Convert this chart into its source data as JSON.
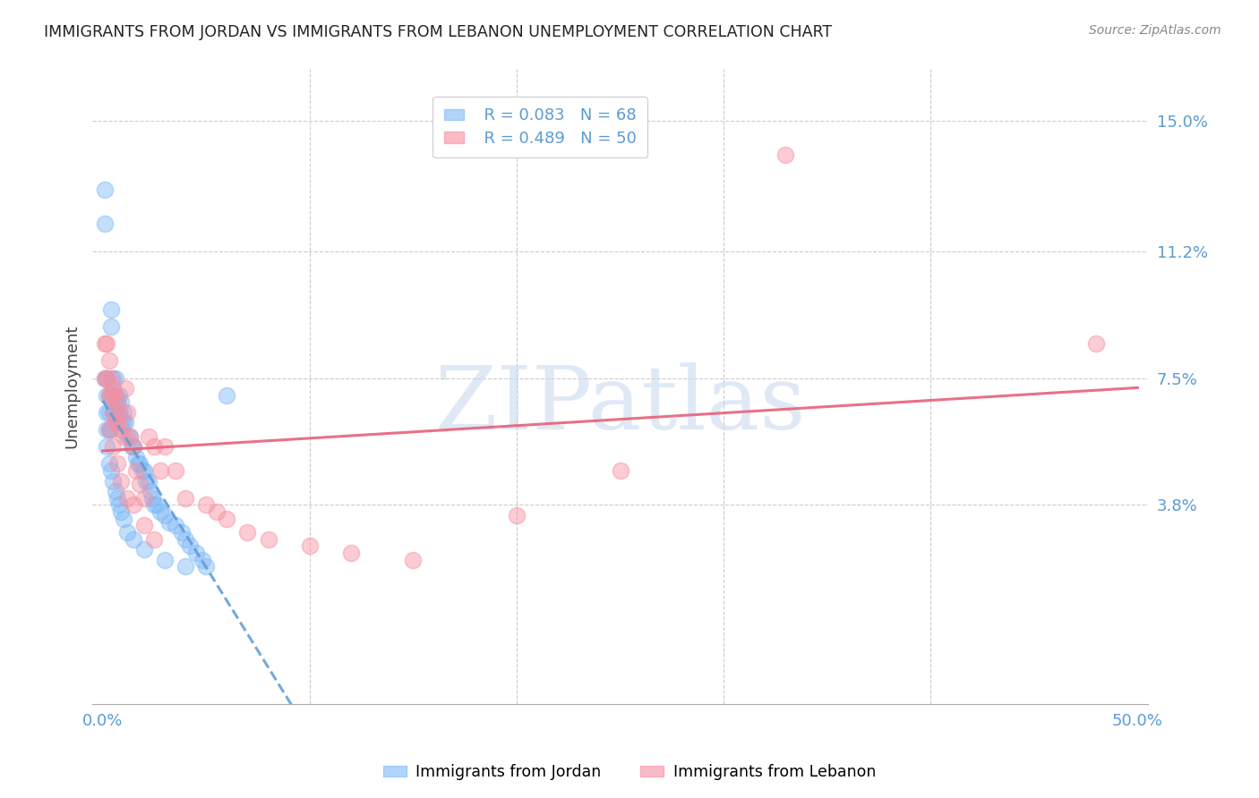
{
  "title": "IMMIGRANTS FROM JORDAN VS IMMIGRANTS FROM LEBANON UNEMPLOYMENT CORRELATION CHART",
  "source": "Source: ZipAtlas.com",
  "ylabel": "Unemployment",
  "xlim": [
    -0.005,
    0.505
  ],
  "ylim": [
    -0.02,
    0.165
  ],
  "yticks": [
    0.038,
    0.075,
    0.112,
    0.15
  ],
  "ytick_labels": [
    "3.8%",
    "7.5%",
    "11.2%",
    "15.0%"
  ],
  "xticks": [
    0.0,
    0.1,
    0.2,
    0.3,
    0.4,
    0.5
  ],
  "xtick_labels": [
    "0.0%",
    "",
    "",
    "",
    "",
    "50.0%"
  ],
  "jordan_color": "#7EB8F7",
  "lebanon_color": "#F78FA0",
  "jordan_R": 0.083,
  "jordan_N": 68,
  "lebanon_R": 0.489,
  "lebanon_N": 50,
  "jordan_line_color": "#5B9BD5",
  "lebanon_line_color": "#E8607A",
  "background_color": "#ffffff",
  "watermark": "ZIPatlas",
  "legend_R_jordan": "R = 0.083",
  "legend_N_jordan": "N = 68",
  "legend_R_lebanon": "R = 0.489",
  "legend_N_lebanon": "N = 50",
  "jordan_x": [
    0.001,
    0.001,
    0.001,
    0.002,
    0.002,
    0.002,
    0.002,
    0.003,
    0.003,
    0.003,
    0.004,
    0.004,
    0.004,
    0.005,
    0.005,
    0.005,
    0.006,
    0.006,
    0.006,
    0.007,
    0.007,
    0.008,
    0.008,
    0.009,
    0.009,
    0.01,
    0.01,
    0.011,
    0.012,
    0.013,
    0.014,
    0.015,
    0.016,
    0.017,
    0.018,
    0.019,
    0.02,
    0.021,
    0.022,
    0.023,
    0.024,
    0.025,
    0.026,
    0.028,
    0.03,
    0.032,
    0.035,
    0.038,
    0.04,
    0.042,
    0.045,
    0.048,
    0.05,
    0.002,
    0.003,
    0.004,
    0.005,
    0.006,
    0.007,
    0.008,
    0.009,
    0.01,
    0.012,
    0.015,
    0.02,
    0.03,
    0.04,
    0.06
  ],
  "jordan_y": [
    0.13,
    0.12,
    0.075,
    0.075,
    0.07,
    0.065,
    0.06,
    0.07,
    0.065,
    0.06,
    0.095,
    0.09,
    0.06,
    0.075,
    0.07,
    0.065,
    0.075,
    0.07,
    0.065,
    0.068,
    0.065,
    0.07,
    0.065,
    0.068,
    0.062,
    0.065,
    0.062,
    0.062,
    0.058,
    0.058,
    0.055,
    0.055,
    0.052,
    0.05,
    0.05,
    0.048,
    0.048,
    0.045,
    0.045,
    0.042,
    0.04,
    0.038,
    0.038,
    0.036,
    0.035,
    0.033,
    0.032,
    0.03,
    0.028,
    0.026,
    0.024,
    0.022,
    0.02,
    0.055,
    0.05,
    0.048,
    0.045,
    0.042,
    0.04,
    0.038,
    0.036,
    0.034,
    0.03,
    0.028,
    0.025,
    0.022,
    0.02,
    0.07
  ],
  "lebanon_x": [
    0.001,
    0.001,
    0.002,
    0.002,
    0.003,
    0.003,
    0.004,
    0.004,
    0.005,
    0.005,
    0.006,
    0.006,
    0.007,
    0.007,
    0.008,
    0.009,
    0.01,
    0.011,
    0.012,
    0.013,
    0.015,
    0.016,
    0.018,
    0.02,
    0.022,
    0.025,
    0.028,
    0.03,
    0.035,
    0.04,
    0.05,
    0.055,
    0.06,
    0.07,
    0.08,
    0.1,
    0.12,
    0.15,
    0.2,
    0.25,
    0.33,
    0.48,
    0.003,
    0.005,
    0.007,
    0.009,
    0.012,
    0.015,
    0.02,
    0.025
  ],
  "lebanon_y": [
    0.085,
    0.075,
    0.085,
    0.075,
    0.08,
    0.07,
    0.075,
    0.07,
    0.072,
    0.065,
    0.07,
    0.062,
    0.068,
    0.062,
    0.065,
    0.06,
    0.058,
    0.072,
    0.065,
    0.058,
    0.055,
    0.048,
    0.044,
    0.04,
    0.058,
    0.055,
    0.048,
    0.055,
    0.048,
    0.04,
    0.038,
    0.036,
    0.034,
    0.03,
    0.028,
    0.026,
    0.024,
    0.022,
    0.035,
    0.048,
    0.14,
    0.085,
    0.06,
    0.055,
    0.05,
    0.045,
    0.04,
    0.038,
    0.032,
    0.028
  ]
}
